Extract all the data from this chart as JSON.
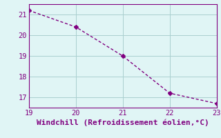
{
  "x": [
    19,
    20,
    21,
    22,
    23
  ],
  "y": [
    21.2,
    20.4,
    19.0,
    17.2,
    16.7
  ],
  "line_color": "#800080",
  "marker": "D",
  "marker_size": 3,
  "linewidth": 1.0,
  "background_color": "#e0f5f5",
  "grid_color": "#aacfcf",
  "tick_color": "#800080",
  "label_color": "#800080",
  "xlabel": "Windchill (Refroidissement éolien,°C)",
  "xlim": [
    19,
    23
  ],
  "ylim": [
    16.5,
    21.5
  ],
  "xticks": [
    19,
    20,
    21,
    22,
    23
  ],
  "yticks": [
    17,
    18,
    19,
    20,
    21
  ],
  "xlabel_fontsize": 8,
  "tick_fontsize": 7.5
}
